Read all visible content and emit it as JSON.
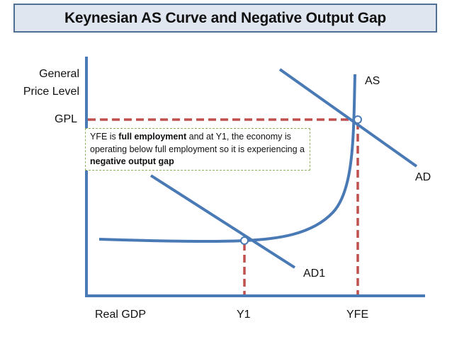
{
  "title": "Keynesian AS Curve and Negative Output Gap",
  "axes": {
    "y_label_line1": "General",
    "y_label_line2": "Price Level",
    "x_label": "Real GDP"
  },
  "labels": {
    "gpl": "GPL",
    "y1": "Y1",
    "yfe": "YFE",
    "as": "AS",
    "ad": "AD",
    "ad1": "AD1"
  },
  "note": {
    "part1": "YFE is ",
    "bold1": "full employment",
    "part2": " and at Y1, the economy is operating below full employment so it is experiencing a ",
    "bold2": "negative output gap"
  },
  "colors": {
    "curve": "#4a7ab5",
    "dashed_line": "#c0504d",
    "note_border": "#8fb15d",
    "title_fill": "#dfe6f0",
    "title_border": "#4f6f95"
  }
}
